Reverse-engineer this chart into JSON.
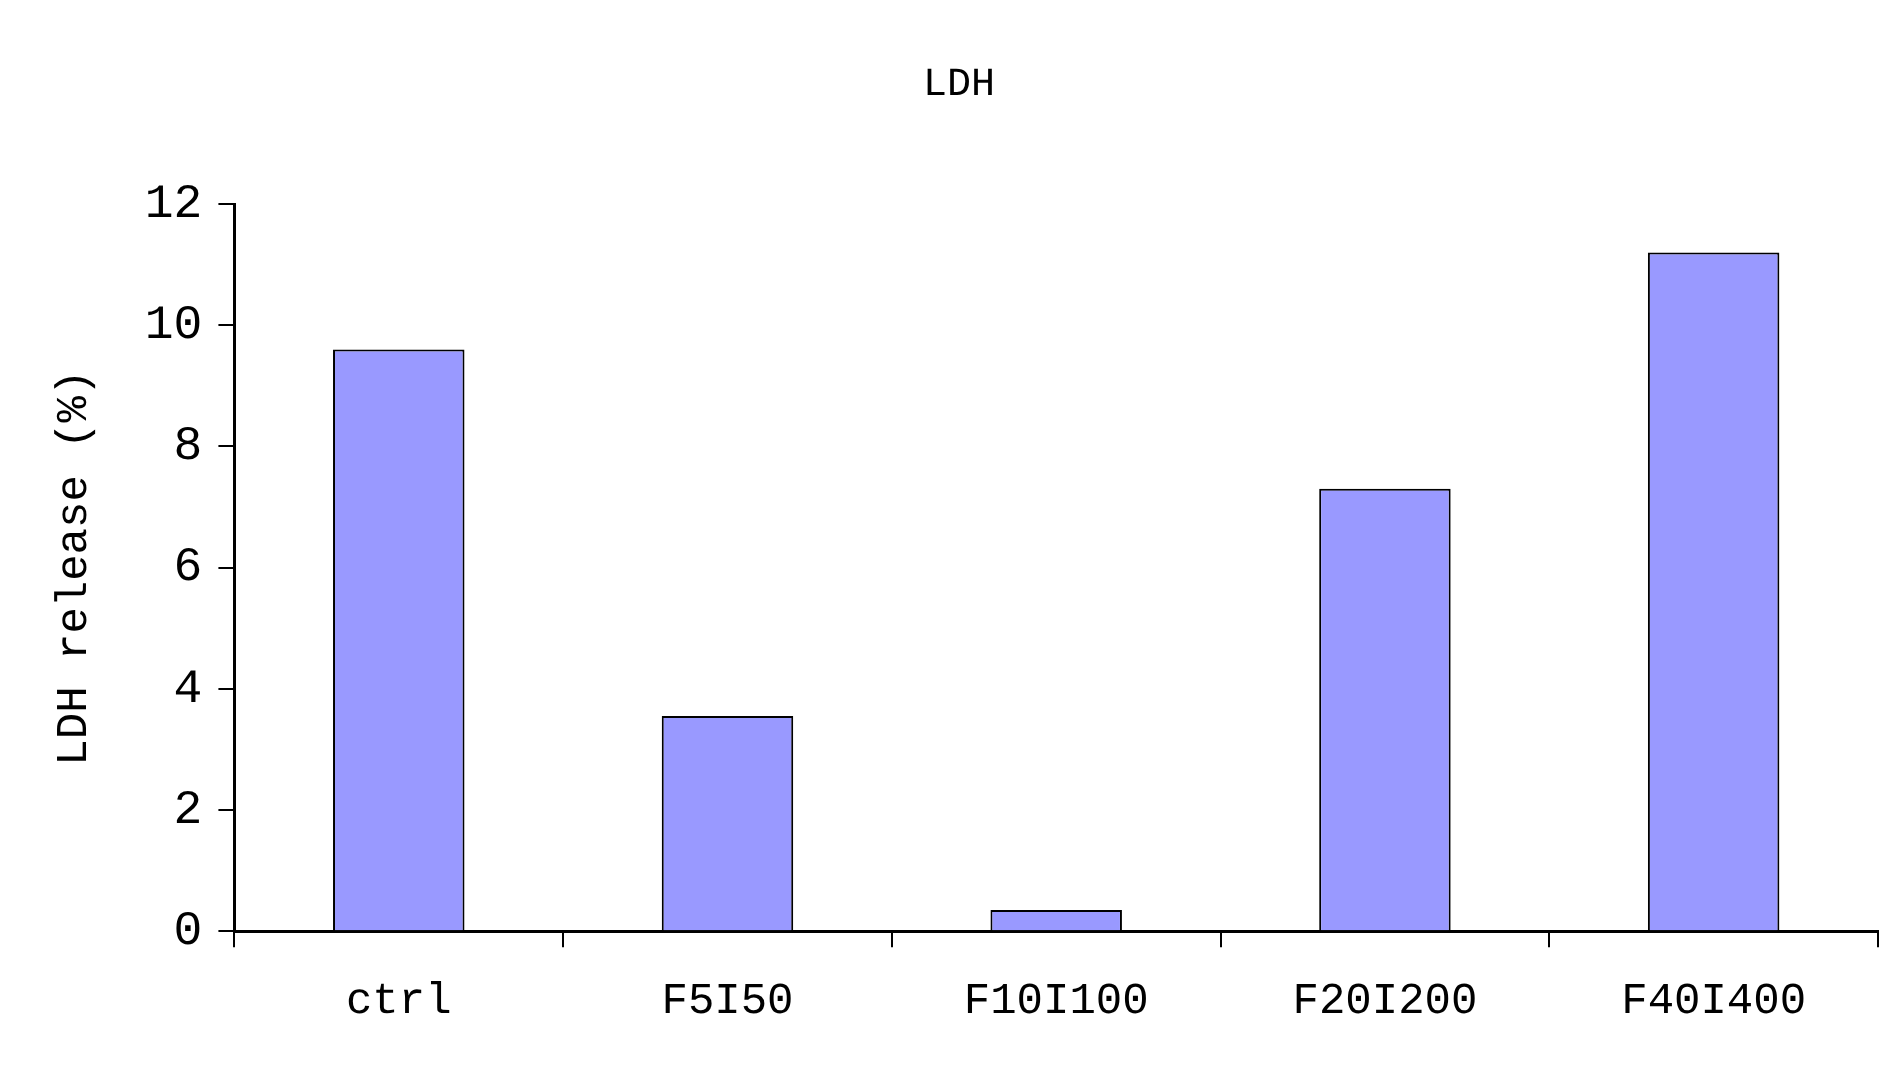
{
  "chart_data": {
    "type": "bar",
    "title": "LDH",
    "ylabel": "LDH release (%)",
    "categories": [
      "ctrl",
      "F5I50",
      "F10I100",
      "F20I200",
      "F40I400"
    ],
    "values": [
      9.6,
      3.55,
      0.35,
      7.3,
      11.2
    ],
    "color": "#9999ff",
    "ylim": [
      0,
      12
    ],
    "yticks": [
      0,
      2,
      4,
      6,
      8,
      10,
      12
    ],
    "grid": false,
    "legend": false
  }
}
